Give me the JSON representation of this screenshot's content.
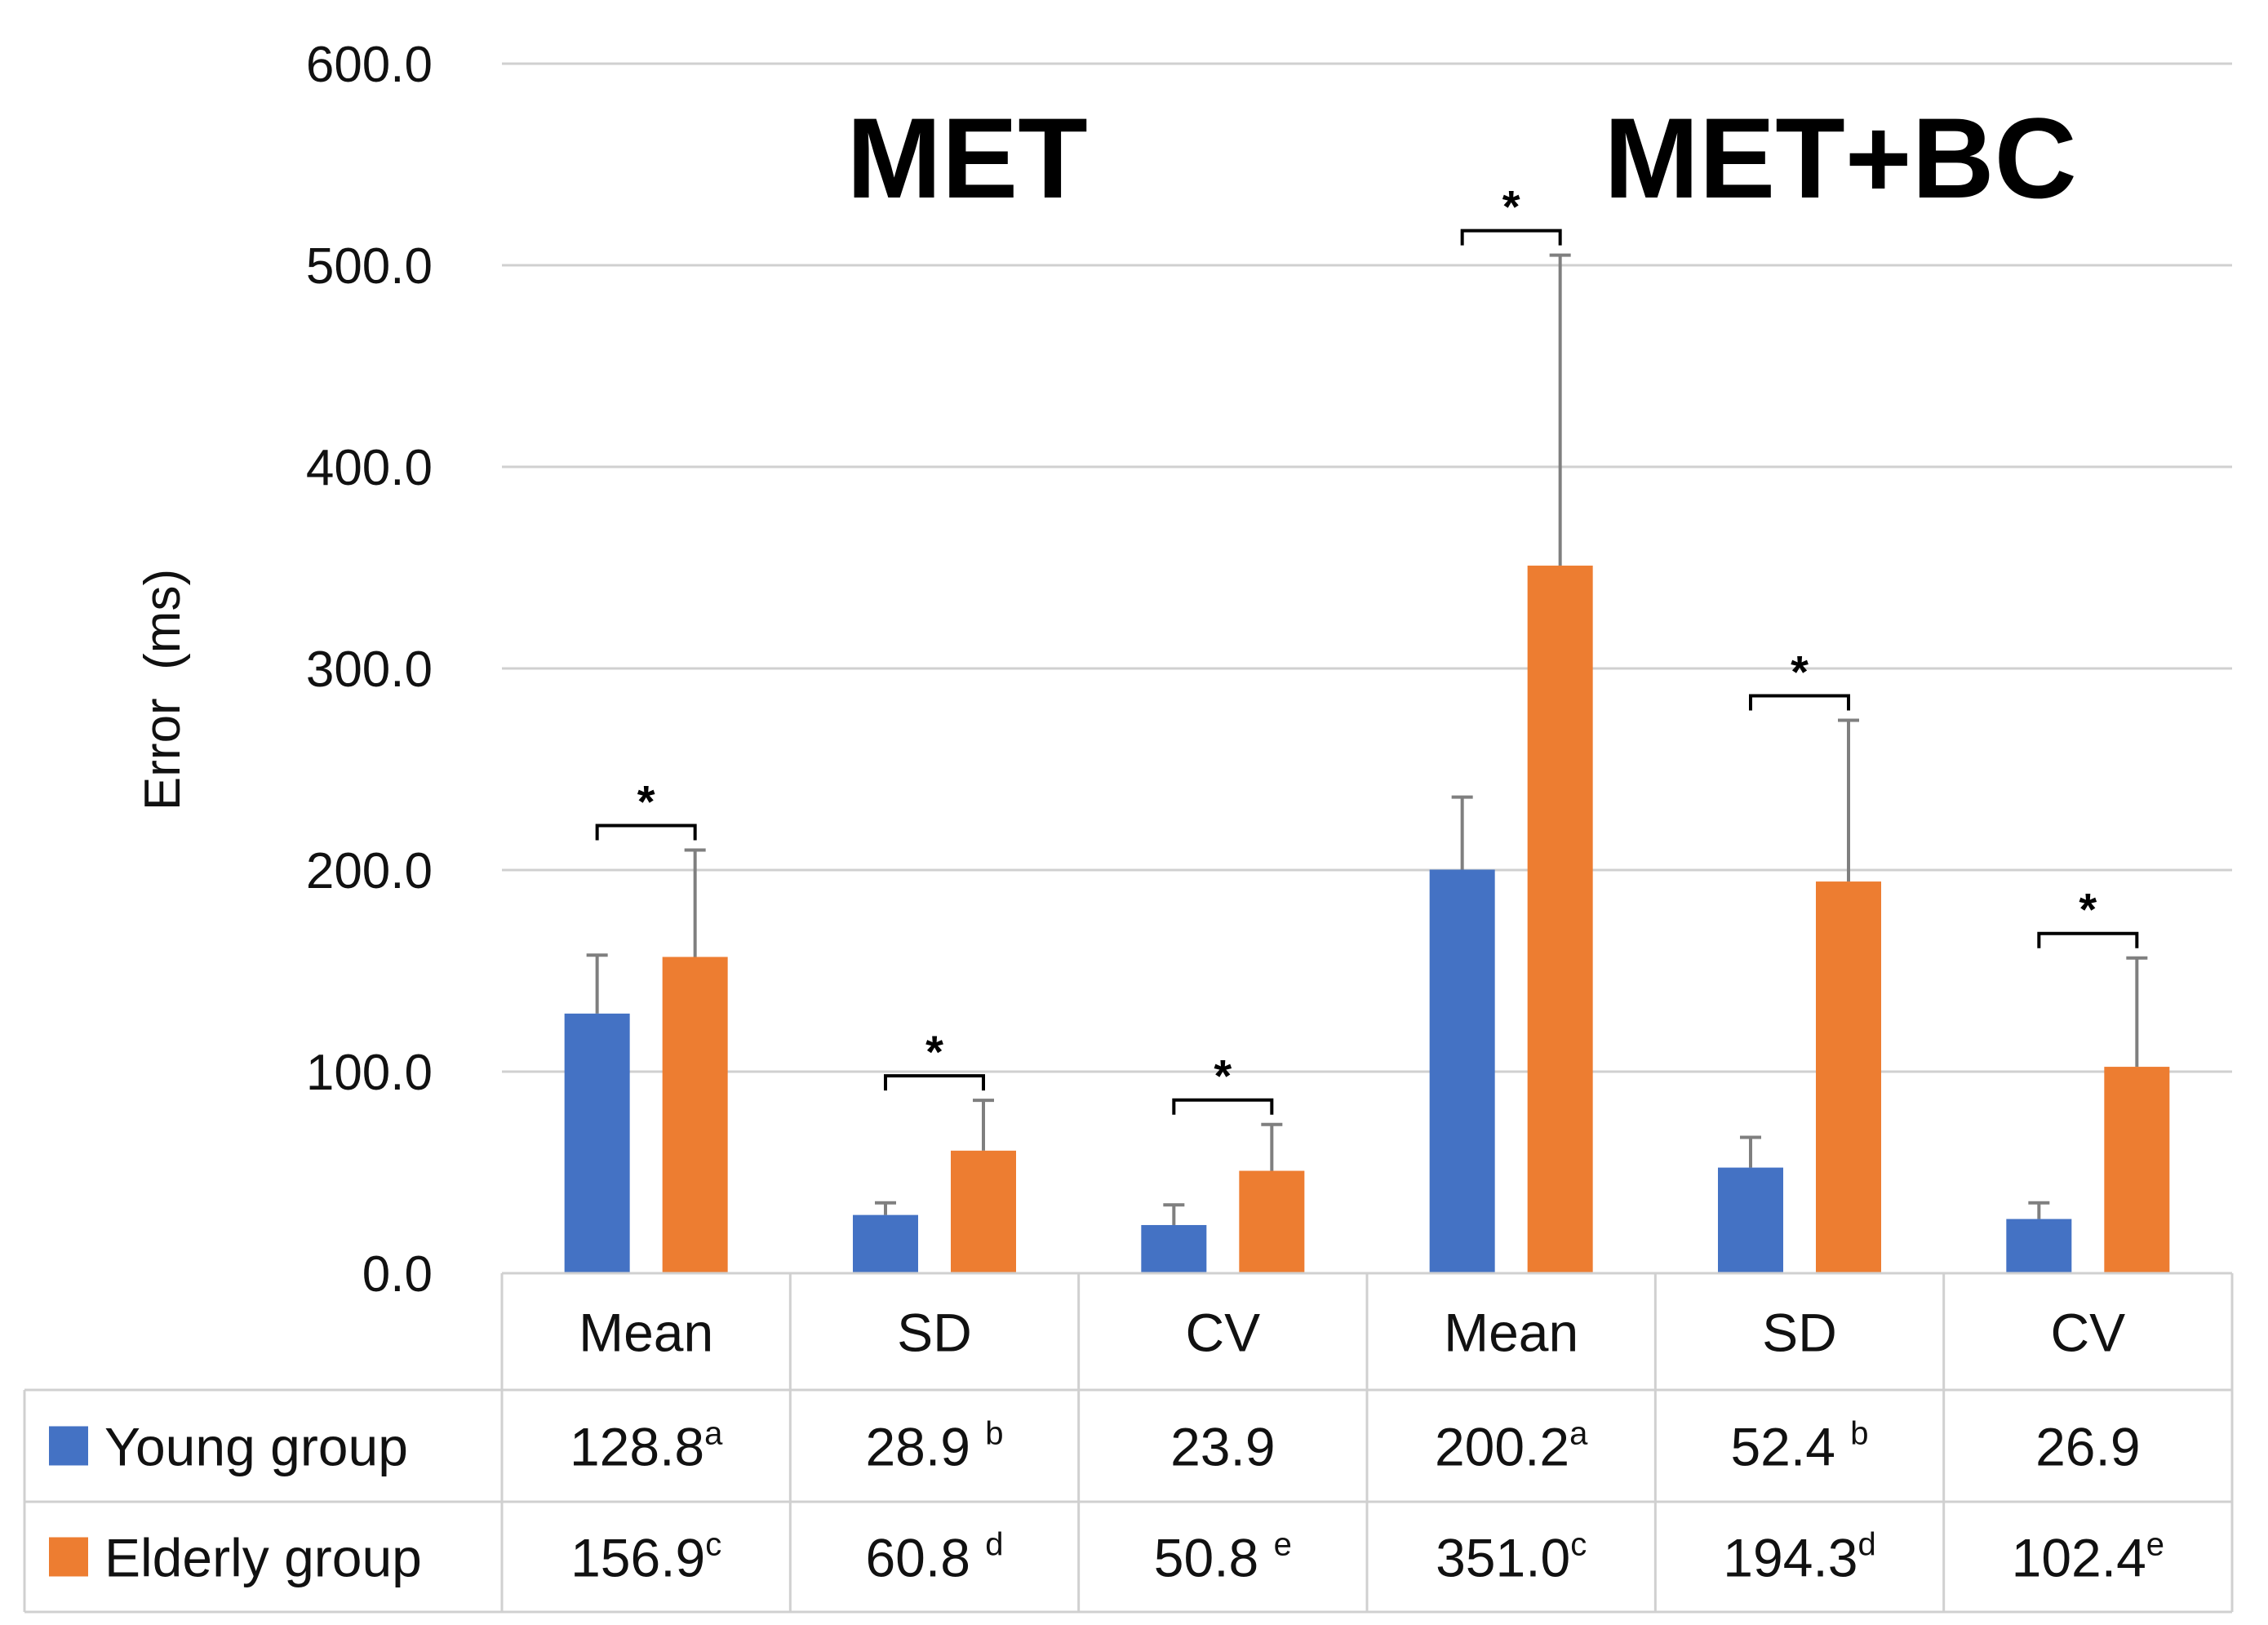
{
  "chart_data": {
    "type": "bar",
    "ylabel": "Error  (ms)",
    "ylim": [
      0,
      600
    ],
    "yticks": [
      0,
      100,
      200,
      300,
      400,
      500,
      600
    ],
    "ytick_labels": [
      "0.0",
      "100.0",
      "200.0",
      "300.0",
      "400.0",
      "500.0",
      "600.0"
    ],
    "grid": true,
    "group_titles": [
      "MET",
      "MET+BC"
    ],
    "categories": [
      "Mean",
      "SD",
      "CV",
      "Mean",
      "SD",
      "CV"
    ],
    "series": [
      {
        "name": "Young group",
        "color": "#4472C4",
        "values": [
          128.8,
          28.9,
          23.9,
          200.2,
          52.4,
          26.9
        ],
        "errors": [
          29,
          6,
          10,
          36,
          15,
          8
        ],
        "value_labels": [
          "128.8",
          "28.9 ",
          "23.9",
          "200.2",
          "52.4 ",
          "26.9"
        ],
        "superscripts": [
          "a",
          "b",
          "",
          "a",
          "b",
          ""
        ]
      },
      {
        "name": "Elderly group",
        "color": "#ED7D31",
        "values": [
          156.9,
          60.8,
          50.8,
          351.0,
          194.3,
          102.4
        ],
        "errors": [
          53,
          25,
          23,
          154,
          80,
          54
        ],
        "value_labels": [
          "156.9",
          "60.8 ",
          "50.8 ",
          "351.0",
          "194.3",
          "102.4"
        ],
        "superscripts": [
          "c",
          "d",
          "e",
          "c",
          "d",
          "e"
        ]
      }
    ],
    "significance": [
      "*",
      "*",
      "*",
      "*",
      "*",
      "*"
    ]
  }
}
